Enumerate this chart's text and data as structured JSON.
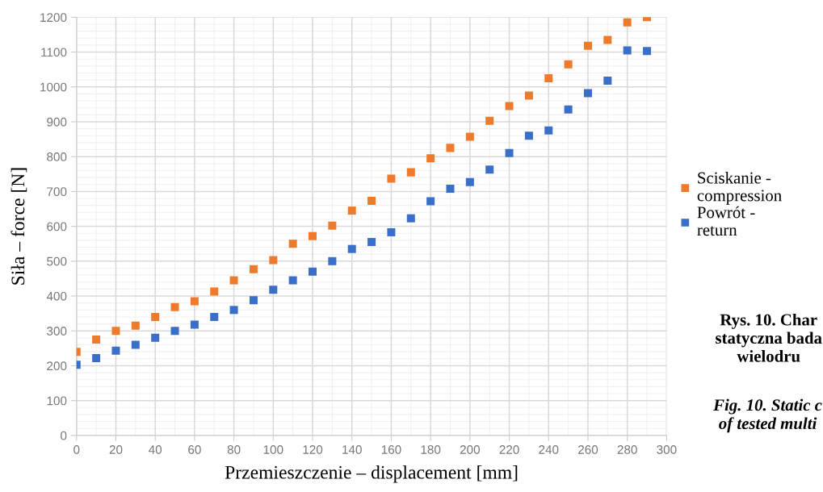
{
  "chart_data": {
    "type": "scatter",
    "xlabel": "Przemieszczenie – displacement [mm]",
    "ylabel": "Siła – force [N]",
    "x": [
      0,
      10,
      20,
      30,
      40,
      50,
      60,
      70,
      80,
      90,
      100,
      110,
      120,
      130,
      140,
      150,
      160,
      170,
      180,
      190,
      200,
      210,
      220,
      230,
      240,
      250,
      260,
      270,
      280,
      290
    ],
    "series": [
      {
        "name": "Sciskanie -\ncompression",
        "color": "#ee7a2c",
        "values": [
          240,
          275,
          300,
          315,
          340,
          368,
          385,
          413,
          445,
          477,
          503,
          550,
          572,
          602,
          645,
          673,
          737,
          755,
          795,
          825,
          857,
          903,
          945,
          975,
          1025,
          1065,
          1118,
          1135,
          1185,
          1200
        ]
      },
      {
        "name": "Powrót -\nreturn",
        "color": "#3a6fc9",
        "values": [
          203,
          222,
          243,
          260,
          280,
          300,
          318,
          340,
          360,
          388,
          418,
          445,
          470,
          500,
          535,
          555,
          583,
          623,
          672,
          708,
          727,
          763,
          810,
          860,
          875,
          935,
          982,
          1018,
          1105,
          1103
        ]
      }
    ],
    "xlim": [
      0,
      300
    ],
    "xticks": [
      0,
      20,
      40,
      60,
      80,
      100,
      120,
      140,
      160,
      180,
      200,
      220,
      240,
      260,
      280,
      300
    ],
    "ylim": [
      0,
      1200
    ],
    "yticks": [
      0,
      100,
      200,
      300,
      400,
      500,
      600,
      700,
      800,
      900,
      1000,
      1100,
      1200
    ],
    "grid": true,
    "legend": "right",
    "marker": "square",
    "annotations": [
      "Rys. 10. Char\nstatyczna bada\nwielodru",
      "Fig. 10. Static c\nof tested multi"
    ]
  }
}
